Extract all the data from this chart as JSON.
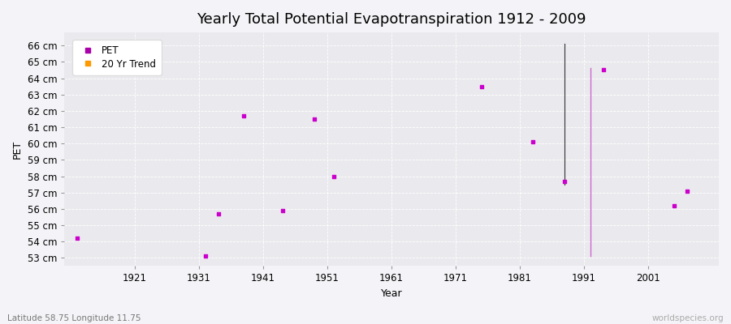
{
  "title": "Yearly Total Potential Evapotranspiration 1912 - 2009",
  "xlabel": "Year",
  "ylabel": "PET",
  "subtitle": "Latitude 58.75 Longitude 11.75",
  "watermark": "worldspecies.org",
  "xlim": [
    1910,
    2012
  ],
  "ylim": [
    52.5,
    66.8
  ],
  "ytick_labels": [
    "53 cm",
    "54 cm",
    "55 cm",
    "56 cm",
    "57 cm",
    "58 cm",
    "59 cm",
    "60 cm",
    "61 cm",
    "62 cm",
    "63 cm",
    "64 cm",
    "65 cm",
    "66 cm"
  ],
  "ytick_values": [
    53,
    54,
    55,
    56,
    57,
    58,
    59,
    60,
    61,
    62,
    63,
    64,
    65,
    66
  ],
  "xtick_values": [
    1921,
    1931,
    1941,
    1951,
    1961,
    1971,
    1981,
    1991,
    2001
  ],
  "pet_data": [
    [
      1912,
      54.2
    ],
    [
      1932,
      53.1
    ],
    [
      1934,
      55.7
    ],
    [
      1938,
      61.7
    ],
    [
      1944,
      55.9
    ],
    [
      1949,
      61.5
    ],
    [
      1952,
      58.0
    ],
    [
      1975,
      63.5
    ],
    [
      1983,
      60.1
    ],
    [
      1988,
      57.7
    ],
    [
      1994,
      64.5
    ],
    [
      2005,
      56.2
    ],
    [
      2007,
      57.1
    ]
  ],
  "trend_line_dark": {
    "x": 1988,
    "y_min": 57.5,
    "y_max": 66.1,
    "color": "#333333",
    "lw": 0.8
  },
  "trend_line_pink": {
    "x": 1992,
    "y_min": 53.1,
    "y_max": 64.6,
    "color": "#cc66cc",
    "lw": 1.0
  },
  "pet_color": "#cc00cc",
  "bg_color": "#f4f4f8",
  "plot_bg": "#eaeaee",
  "grid_color": "#ffffff",
  "legend_pet_color": "#aa00aa",
  "legend_trend_color": "#ff9900",
  "title_fontsize": 13,
  "label_fontsize": 9,
  "tick_fontsize": 8.5
}
